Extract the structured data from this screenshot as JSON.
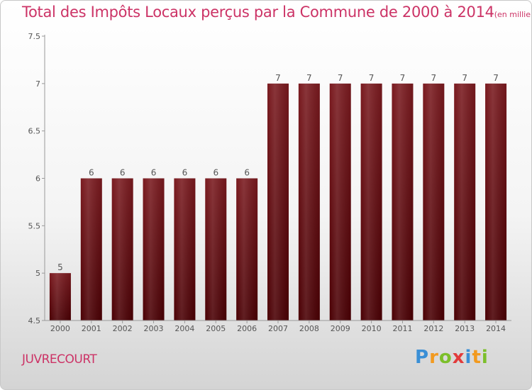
{
  "title": "Total des Impôts Locaux perçus par la Commune de 2000 à 2014",
  "unit": "(en milliers d'€)",
  "commune": "JUVRECOURT",
  "logo": {
    "letters": [
      "P",
      "r",
      "o",
      "x",
      "i",
      "t",
      "i"
    ],
    "colors": [
      "#3a8fd6",
      "#f29a1f",
      "#7cbf2a",
      "#e23b3b",
      "#3a8fd6",
      "#f29a1f",
      "#7cbf2a"
    ]
  },
  "colors": {
    "bar": "#7a1a1f",
    "bar_dark": "#4a0004",
    "title": "#cc3366"
  },
  "chart_data": {
    "type": "bar",
    "title": "Total des Impôts Locaux perçus par la Commune de 2000 à 2014",
    "xlabel": "",
    "ylabel": "",
    "categories": [
      "2000",
      "2001",
      "2002",
      "2003",
      "2004",
      "2005",
      "2006",
      "2007",
      "2008",
      "2009",
      "2010",
      "2011",
      "2012",
      "2013",
      "2014"
    ],
    "values": [
      5,
      6,
      6,
      6,
      6,
      6,
      6,
      7,
      7,
      7,
      7,
      7,
      7,
      7,
      7
    ],
    "labels": [
      "5",
      "6",
      "6",
      "6",
      "6",
      "6",
      "6",
      "7",
      "7",
      "7",
      "7",
      "7",
      "7",
      "7",
      "7"
    ],
    "ylim": [
      4.5,
      7.5
    ],
    "yticks": [
      4.5,
      5,
      5.5,
      6,
      6.5,
      7,
      7.5
    ],
    "ytick_labels": [
      "4.5",
      "5",
      "5.5",
      "6",
      "6.5",
      "7",
      "7.5"
    ],
    "grid": false,
    "legend": "none"
  }
}
